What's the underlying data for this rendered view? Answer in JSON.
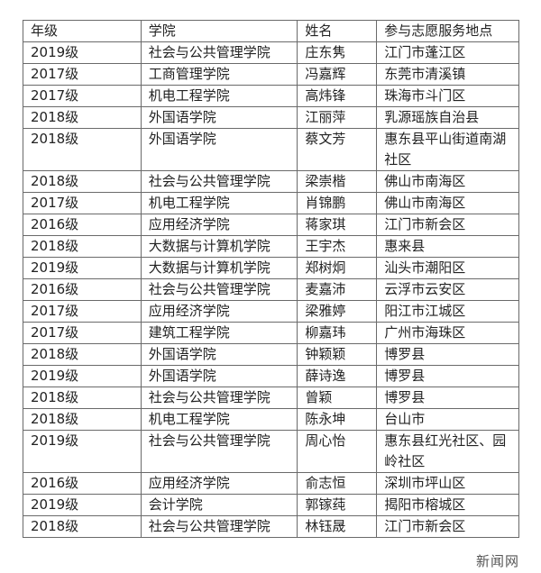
{
  "headers": [
    "年级",
    "学院",
    "姓名",
    "参与志愿服务地点"
  ],
  "rows": [
    [
      "2019级",
      "社会与公共管理学院",
      "庄东隽",
      "江门市蓬江区"
    ],
    [
      "2017级",
      "工商管理学院",
      "冯嘉辉",
      "东莞市清溪镇"
    ],
    [
      "2017级",
      "机电工程学院",
      "高炜锋",
      "珠海市斗门区"
    ],
    [
      "2018级",
      "外国语学院",
      "江丽萍",
      "乳源瑶族自治县"
    ],
    [
      "2018级",
      "外国语学院",
      "蔡文芳",
      "惠东县平山街道南湖社区"
    ],
    [
      "2018级",
      "社会与公共管理学院",
      "梁崇楷",
      "佛山市南海区"
    ],
    [
      "2017级",
      "机电工程学院",
      "肖锦鹏",
      "佛山市南海区"
    ],
    [
      "2016级",
      "应用经济学院",
      "蒋家琪",
      "江门市新会区"
    ],
    [
      "2018级",
      "大数据与计算机学院",
      "王宇杰",
      "惠来县"
    ],
    [
      "2019级",
      "大数据与计算机学院",
      "郑树炯",
      "汕头市潮阳区"
    ],
    [
      "2016级",
      "社会与公共管理学院",
      "麦嘉沛",
      "云浮市云安区"
    ],
    [
      "2017级",
      "应用经济学院",
      "梁雅婷",
      "阳江市江城区"
    ],
    [
      "2017级",
      "建筑工程学院",
      "柳嘉玮",
      "广州市海珠区"
    ],
    [
      "2018级",
      "外国语学院",
      "钟颖颖",
      "博罗县"
    ],
    [
      "2019级",
      "外国语学院",
      "薛诗逸",
      "博罗县"
    ],
    [
      "2018级",
      "社会与公共管理学院",
      "曾颖",
      "博罗县"
    ],
    [
      "2018级",
      "机电工程学院",
      "陈永坤",
      "台山市"
    ],
    [
      "2019级",
      "社会与公共管理学院",
      "周心怡",
      "惠东县红光社区、园岭社区"
    ],
    [
      "2016级",
      "应用经济学院",
      "俞志恒",
      "深圳市坪山区"
    ],
    [
      "2019级",
      "会计学院",
      "郭镓莼",
      "揭阳市榕城区"
    ],
    [
      "2018级",
      "社会与公共管理学院",
      "林钰晟",
      "江门市新会区"
    ]
  ],
  "watermark": "新闻网"
}
